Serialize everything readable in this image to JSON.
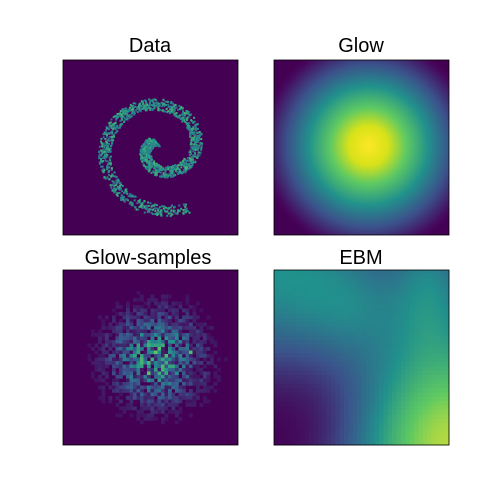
{
  "panels": [
    {
      "title": "Data"
    },
    {
      "title": "Glow"
    },
    {
      "title": "Glow-samples"
    },
    {
      "title": "EBM"
    }
  ]
}
